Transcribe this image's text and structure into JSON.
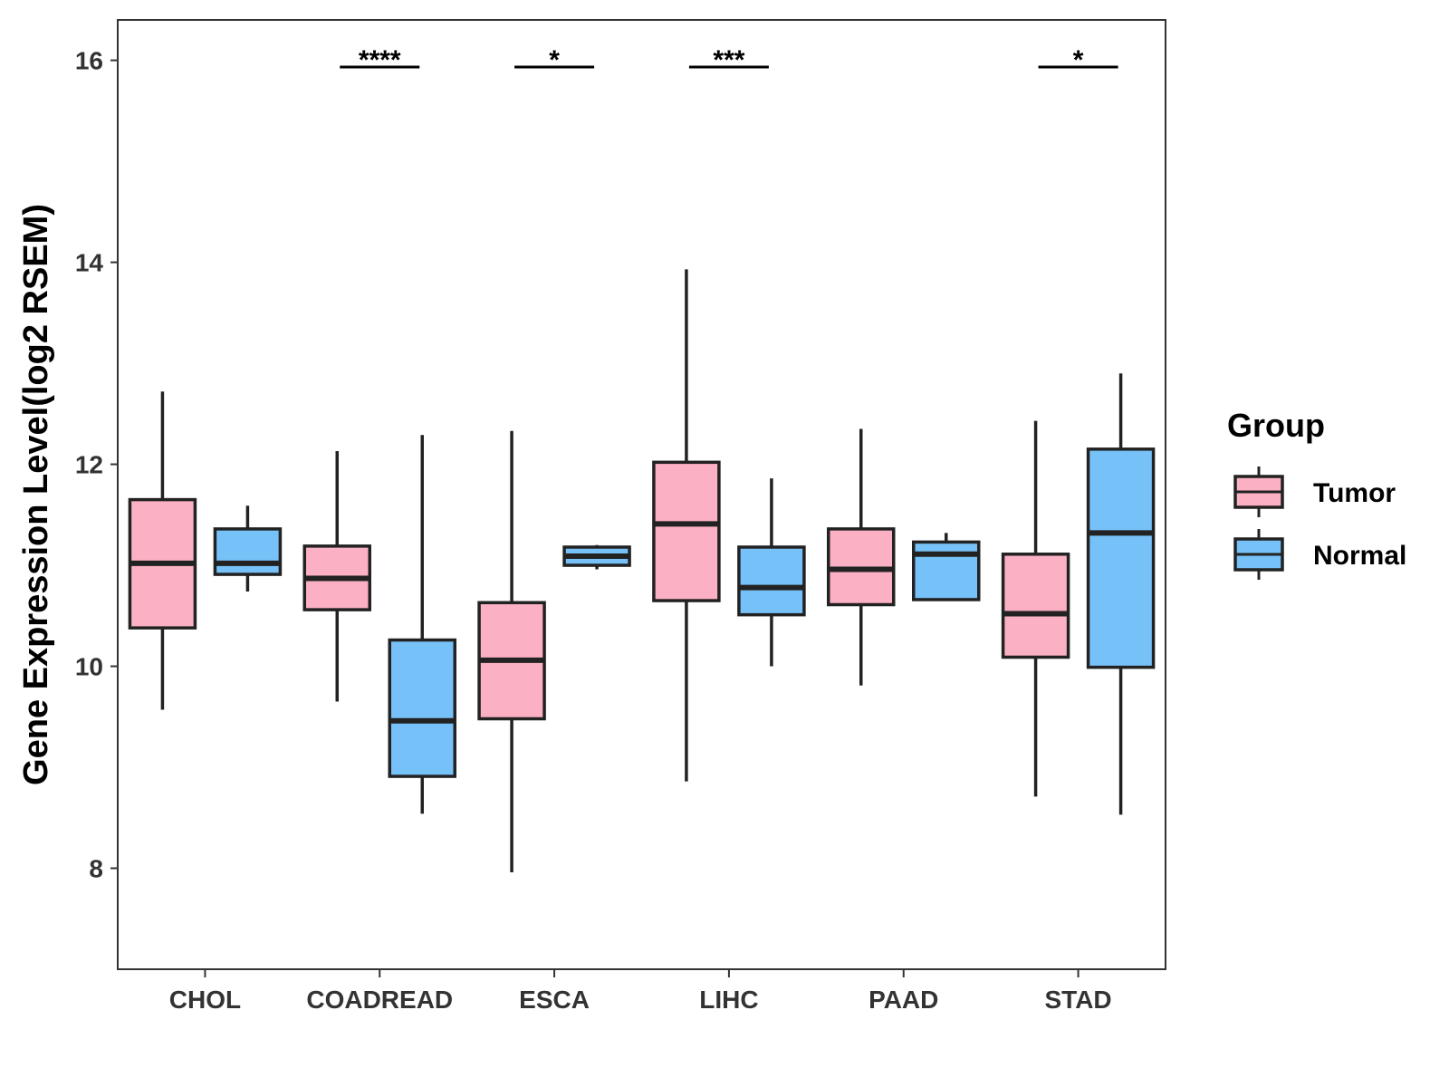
{
  "chart_data": {
    "type": "boxplot",
    "title": "",
    "xlabel": "",
    "ylabel": "Gene Expression Level(log2 RSEM)",
    "ylim": [
      7.0,
      16.4
    ],
    "yticks": [
      8,
      10,
      12,
      14,
      16
    ],
    "grid": false,
    "categories": [
      "CHOL",
      "COADREAD",
      "ESCA",
      "LIHC",
      "PAAD",
      "STAD"
    ],
    "legend": {
      "title": "Group",
      "position": "right",
      "entries": [
        {
          "name": "Tumor",
          "color": "#FBB1C3"
        },
        {
          "name": "Normal",
          "color": "#76C1F7"
        }
      ]
    },
    "series": [
      {
        "name": "Tumor",
        "color": "#FBB1C3",
        "boxes": [
          {
            "min": 9.57,
            "q1": 10.38,
            "median": 11.02,
            "q3": 11.65,
            "max": 12.72
          },
          {
            "min": 9.65,
            "q1": 10.56,
            "median": 10.87,
            "q3": 11.19,
            "max": 12.13
          },
          {
            "min": 7.96,
            "q1": 9.48,
            "median": 10.06,
            "q3": 10.63,
            "max": 12.33
          },
          {
            "min": 8.86,
            "q1": 10.65,
            "median": 11.41,
            "q3": 12.02,
            "max": 13.93
          },
          {
            "min": 9.81,
            "q1": 10.61,
            "median": 10.96,
            "q3": 11.36,
            "max": 12.35
          },
          {
            "min": 8.71,
            "q1": 10.09,
            "median": 10.52,
            "q3": 11.11,
            "max": 12.43
          }
        ]
      },
      {
        "name": "Normal",
        "color": "#76C1F7",
        "boxes": [
          {
            "min": 10.74,
            "q1": 10.91,
            "median": 11.02,
            "q3": 11.36,
            "max": 11.59
          },
          {
            "min": 8.54,
            "q1": 8.91,
            "median": 9.46,
            "q3": 10.26,
            "max": 12.29
          },
          {
            "min": 10.96,
            "q1": 11.0,
            "median": 11.09,
            "q3": 11.18,
            "max": 11.2
          },
          {
            "min": 10.0,
            "q1": 10.51,
            "median": 10.78,
            "q3": 11.18,
            "max": 11.86
          },
          {
            "min": 10.66,
            "q1": 10.66,
            "median": 11.11,
            "q3": 11.23,
            "max": 11.32
          },
          {
            "min": 8.53,
            "q1": 9.99,
            "median": 11.32,
            "q3": 12.15,
            "max": 12.9
          }
        ]
      }
    ],
    "significance": [
      {
        "category": "COADREAD",
        "label": "****"
      },
      {
        "category": "ESCA",
        "label": "*"
      },
      {
        "category": "LIHC",
        "label": "***"
      },
      {
        "category": "STAD",
        "label": "*"
      }
    ]
  }
}
